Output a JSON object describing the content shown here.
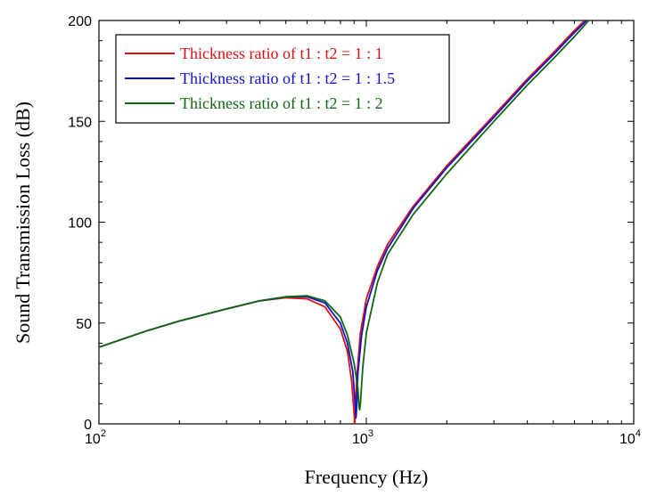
{
  "chart_data": {
    "type": "line",
    "title": "",
    "xlabel": "Frequency (Hz)",
    "ylabel": "Sound Transmission Loss (dB)",
    "x_scale": "log",
    "xlim": [
      100,
      10000
    ],
    "ylim": [
      0,
      200
    ],
    "x_ticks": [
      {
        "value": 100,
        "base": "10",
        "exp": "2"
      },
      {
        "value": 1000,
        "base": "10",
        "exp": "3"
      },
      {
        "value": 10000,
        "base": "10",
        "exp": "4"
      }
    ],
    "y_ticks": [
      "0",
      "50",
      "100",
      "150",
      "200"
    ],
    "grid": false,
    "legend_position": "top-left",
    "series": [
      {
        "name": "Thickness ratio of t1 : t2 = 1 : 1",
        "color": "#dd1111",
        "x": [
          100,
          150,
          200,
          300,
          400,
          500,
          600,
          700,
          800,
          850,
          880,
          900,
          905,
          910,
          920,
          950,
          1000,
          1100,
          1200,
          1500,
          2000,
          3000,
          4000,
          5000,
          6000,
          6800
        ],
        "y": [
          38,
          46,
          51,
          57,
          61,
          62.5,
          62,
          58,
          47,
          36,
          22,
          5,
          0,
          5,
          22,
          45,
          62,
          78,
          89,
          108,
          128,
          153,
          171,
          184,
          195,
          202
        ]
      },
      {
        "name": "Thickness ratio of t1 : t2 = 1 : 1.5",
        "color": "#1111cc",
        "x": [
          100,
          150,
          200,
          300,
          400,
          500,
          600,
          700,
          800,
          850,
          890,
          910,
          915,
          920,
          930,
          960,
          1000,
          1100,
          1200,
          1500,
          2000,
          3000,
          4000,
          5000,
          6000,
          6900
        ],
        "y": [
          38,
          46,
          51,
          57,
          61,
          63,
          63,
          60,
          50,
          40,
          26,
          8,
          3,
          8,
          25,
          44,
          58,
          76,
          87,
          107,
          127,
          152,
          170,
          183,
          194,
          202
        ]
      },
      {
        "name": "Thickness ratio of t1 : t2 = 1 : 2",
        "color": "#116611",
        "x": [
          100,
          150,
          200,
          300,
          400,
          500,
          600,
          700,
          800,
          850,
          900,
          930,
          940,
          945,
          950,
          970,
          1000,
          1100,
          1200,
          1500,
          2000,
          3000,
          4000,
          5000,
          6000,
          7000
        ],
        "y": [
          38,
          46,
          51,
          57,
          61,
          63,
          63.5,
          61,
          53,
          44,
          30,
          18,
          8,
          7,
          10,
          28,
          45,
          70,
          84,
          104,
          124,
          150,
          168,
          181,
          192,
          202
        ]
      }
    ]
  }
}
